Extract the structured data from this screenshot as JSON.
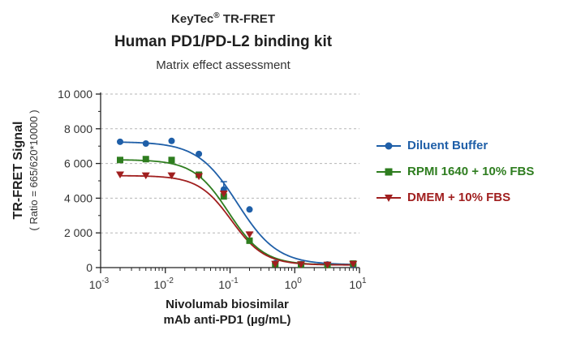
{
  "header": {
    "brand": "KeyTec",
    "brand_mark": "®",
    "brand_suffix": " TR-FRET",
    "title": "Human PD1/PD-L2 binding kit",
    "subtitle": "Matrix effect assessment"
  },
  "chart_data": {
    "type": "scatter",
    "xscale": "log",
    "xlim": [
      0.001,
      10
    ],
    "ylim": [
      0,
      10000
    ],
    "xlabel": "Nivolumab biosimilar mAb anti-PD1  (µg/mL)",
    "xlabel_lines": [
      "Nivolumab biosimilar",
      "mAb anti-PD1  (µg/mL)"
    ],
    "ylabel": "TR-FRET Signal",
    "ylabel_sub": "( Ratio = 665/620*10000 )",
    "y_ticks": [
      0,
      2000,
      4000,
      6000,
      8000,
      10000
    ],
    "y_tick_labels": [
      "0",
      "2 000",
      "4 000",
      "6 000",
      "8 000",
      "10 000"
    ],
    "x_ticks": [
      0.001,
      0.01,
      0.1,
      1,
      10
    ],
    "x_tick_labels": [
      {
        "base": "10",
        "exp": "-3"
      },
      {
        "base": "10",
        "exp": "-2"
      },
      {
        "base": "10",
        "exp": "-1"
      },
      {
        "base": "10",
        "exp": "0"
      },
      {
        "base": "10",
        "exp": "1"
      }
    ],
    "grid": "horizontal dashed",
    "legend_position": "right",
    "series": [
      {
        "name": "Diluent Buffer",
        "color": "#1f5fa8",
        "marker": "circle",
        "x": [
          0.002,
          0.005,
          0.0125,
          0.033,
          0.08,
          0.2,
          0.5,
          1.25,
          3.2,
          8
        ],
        "y": [
          7250,
          7150,
          7300,
          6550,
          4500,
          3350,
          250,
          200,
          180,
          170
        ],
        "error": [
          0,
          0,
          0,
          0,
          450,
          0,
          0,
          0,
          0,
          0
        ],
        "fit": {
          "top": 7250,
          "bottom": 160,
          "ec50": 0.13,
          "hill": 1.4
        }
      },
      {
        "name": "RPMI 1640 + 10% FBS",
        "color": "#2e7d1f",
        "marker": "square",
        "x": [
          0.002,
          0.005,
          0.0125,
          0.033,
          0.08,
          0.2,
          0.5,
          1.25,
          3.2,
          8
        ],
        "y": [
          6200,
          6250,
          6200,
          5350,
          4100,
          1550,
          200,
          180,
          150,
          230
        ],
        "error": [
          0,
          0,
          0,
          0,
          0,
          0,
          0,
          0,
          0,
          0
        ],
        "fit": {
          "top": 6220,
          "bottom": 150,
          "ec50": 0.095,
          "hill": 1.6
        }
      },
      {
        "name": "DMEM + 10% FBS",
        "color": "#a01f1f",
        "marker": "triangle",
        "x": [
          0.002,
          0.005,
          0.0125,
          0.033,
          0.08,
          0.2,
          0.5,
          1.25,
          3.2,
          8
        ],
        "y": [
          5350,
          5300,
          5300,
          5250,
          4250,
          1900,
          200,
          170,
          150,
          200
        ],
        "error": [
          0,
          0,
          0,
          0,
          0,
          0,
          0,
          0,
          0,
          0
        ],
        "fit": {
          "top": 5300,
          "bottom": 150,
          "ec50": 0.105,
          "hill": 1.7
        }
      }
    ]
  }
}
